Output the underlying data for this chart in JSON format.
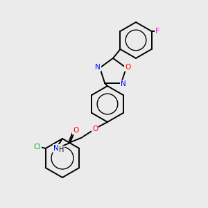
{
  "bg_color": "#ebebeb",
  "bond_color": "#000000",
  "atom_colors": {
    "N": "#0000ff",
    "O": "#ff0000",
    "Cl": "#00bb00",
    "F": "#ff00ff"
  },
  "figsize": [
    3.0,
    3.0
  ],
  "dpi": 100
}
